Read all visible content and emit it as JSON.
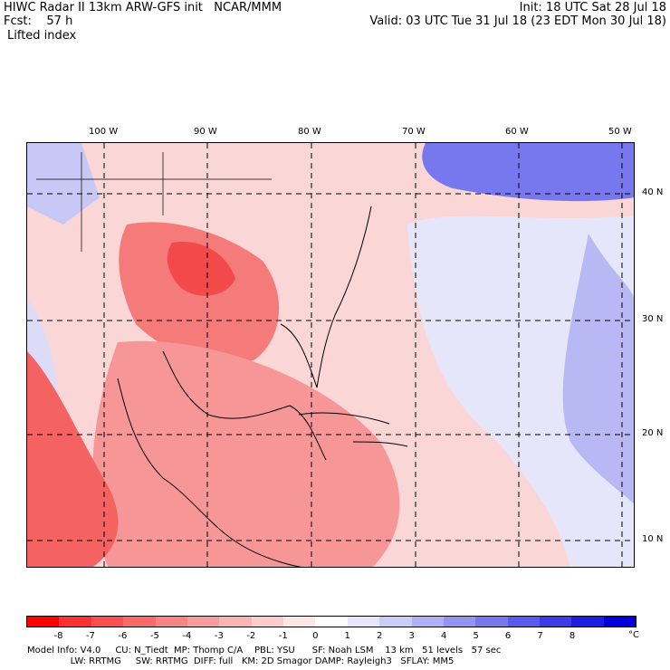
{
  "header": {
    "line1_left": "HIWC Radar II 13km ARW-GFS init   NCAR/MMM",
    "line1_right": "Init: 18 UTC Sat 28 Jul 18",
    "line2_left": "Fcst:    57 h",
    "line2_right": "Valid: 03 UTC Tue 31 Jul 18 (23 EDT Mon 30 Jul 18)",
    "field": "Lifted index"
  },
  "map": {
    "lon_labels": [
      "100 W",
      "90 W",
      "80 W",
      "70 W",
      "60 W",
      "50 W"
    ],
    "lat_labels": [
      "40 N",
      "30 N",
      "20 N",
      "10 N"
    ]
  },
  "colorbar": {
    "colors": [
      "#ff0000",
      "#fc3232",
      "#fa5050",
      "#f86b6b",
      "#f88484",
      "#f89c9c",
      "#f9b4b4",
      "#fbcccc",
      "#fde6e6",
      "#ffffff",
      "#e6e6fb",
      "#ccccf8",
      "#b0b0f5",
      "#9494f2",
      "#7878ee",
      "#5a5aea",
      "#3c3ce6",
      "#1e1ee3",
      "#0000dd"
    ],
    "ticks": [
      "-8",
      "-7",
      "-6",
      "-5",
      "-4",
      "-3",
      "-2",
      "-1",
      "0",
      "1",
      "2",
      "3",
      "4",
      "5",
      "6",
      "7",
      "8"
    ],
    "unit": "°C"
  },
  "footer": {
    "line1": "Model Info: V4.0     CU: N_Tiedt  MP: Thomp C/A    PBL: YSU      SF: Noah LSM    13 km   51 levels   57 sec",
    "line2": "               LW: RRTMG     SW: RRTMG  DIFF: full   KM: 2D Smagor DAMP: Rayleigh3   SFLAY: MM5"
  }
}
